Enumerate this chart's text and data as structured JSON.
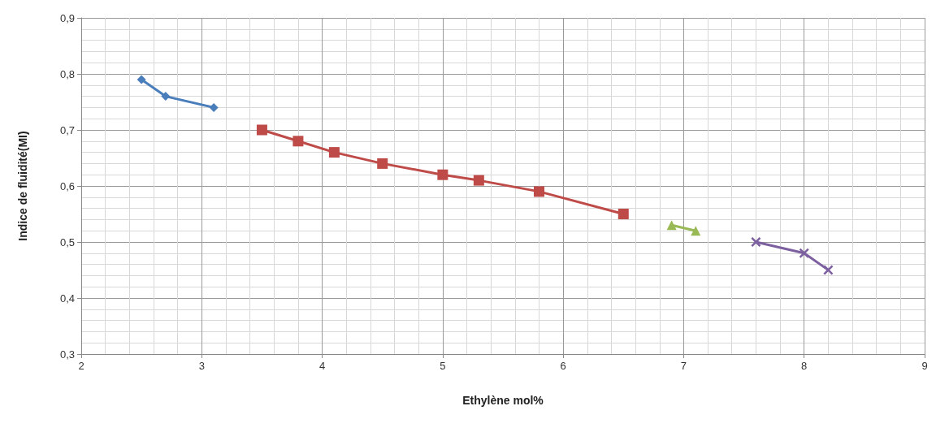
{
  "chart_data": {
    "type": "line",
    "xlabel": "Ethylène mol%",
    "ylabel": "Indice de fluidité(MI)",
    "xlim": [
      2,
      9
    ],
    "xticks": [
      2,
      3,
      4,
      5,
      6,
      7,
      8,
      9
    ],
    "ylim": [
      0.3,
      0.9
    ],
    "yticks": [
      {
        "value": 0.3,
        "label": "0,3"
      },
      {
        "value": 0.4,
        "label": "0,4"
      },
      {
        "value": 0.5,
        "label": "0,5"
      },
      {
        "value": 0.6,
        "label": "0,6"
      },
      {
        "value": 0.7,
        "label": "0,7"
      },
      {
        "value": 0.8,
        "label": "0,8"
      },
      {
        "value": 0.9,
        "label": "0,9"
      }
    ],
    "grid": true,
    "series": [
      {
        "color": "#4a7ebb",
        "marker": "diamond",
        "x": [
          2.5,
          2.7,
          3.1
        ],
        "values": [
          0.79,
          0.76,
          0.74
        ]
      },
      {
        "color": "#be4b48",
        "marker": "square",
        "x": [
          3.5,
          3.8,
          4.1,
          4.5,
          5.0,
          5.3,
          5.8,
          6.5
        ],
        "values": [
          0.7,
          0.68,
          0.66,
          0.64,
          0.62,
          0.61,
          0.59,
          0.55
        ]
      },
      {
        "color": "#98b954",
        "marker": "triangle",
        "x": [
          6.9,
          7.1
        ],
        "values": [
          0.53,
          0.52
        ]
      },
      {
        "color": "#7d60a0",
        "marker": "cross",
        "x": [
          7.6,
          8.0,
          8.2
        ],
        "values": [
          0.5,
          0.48,
          0.45
        ]
      }
    ]
  }
}
